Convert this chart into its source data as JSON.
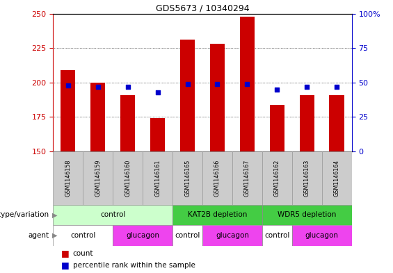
{
  "title": "GDS5673 / 10340294",
  "samples": [
    "GSM1146158",
    "GSM1146159",
    "GSM1146160",
    "GSM1146161",
    "GSM1146165",
    "GSM1146166",
    "GSM1146167",
    "GSM1146162",
    "GSM1146163",
    "GSM1146164"
  ],
  "counts": [
    209,
    200,
    191,
    174,
    231,
    228,
    248,
    184,
    191,
    191
  ],
  "percentile_ranks": [
    48,
    47,
    47,
    43,
    49,
    49,
    49,
    45,
    47,
    47
  ],
  "ylim_left": [
    150,
    250
  ],
  "ylim_right": [
    0,
    100
  ],
  "yticks_left": [
    150,
    175,
    200,
    225,
    250
  ],
  "yticks_right": [
    0,
    25,
    50,
    75,
    100
  ],
  "bar_color": "#cc0000",
  "dot_color": "#0000cc",
  "bar_bottom": 150,
  "groups": [
    {
      "label": "control",
      "start": 0,
      "end": 4,
      "color": "#ccffcc"
    },
    {
      "label": "KAT2B depletion",
      "start": 4,
      "end": 7,
      "color": "#44cc44"
    },
    {
      "label": "WDR5 depletion",
      "start": 7,
      "end": 10,
      "color": "#44cc44"
    }
  ],
  "agents": [
    {
      "label": "control",
      "start": 0,
      "end": 2,
      "color": "#ffffff"
    },
    {
      "label": "glucagon",
      "start": 2,
      "end": 4,
      "color": "#ee44ee"
    },
    {
      "label": "control",
      "start": 4,
      "end": 5,
      "color": "#ffffff"
    },
    {
      "label": "glucagon",
      "start": 5,
      "end": 7,
      "color": "#ee44ee"
    },
    {
      "label": "control",
      "start": 7,
      "end": 8,
      "color": "#ffffff"
    },
    {
      "label": "glucagon",
      "start": 8,
      "end": 10,
      "color": "#ee44ee"
    }
  ],
  "genotype_label": "genotype/variation",
  "agent_label": "agent",
  "legend_count_label": "count",
  "legend_percentile_label": "percentile rank within the sample",
  "axis_color_left": "#cc0000",
  "axis_color_right": "#0000cc",
  "sample_box_color": "#cccccc",
  "sample_box_edge": "#999999",
  "fig_width": 5.65,
  "fig_height": 3.93
}
